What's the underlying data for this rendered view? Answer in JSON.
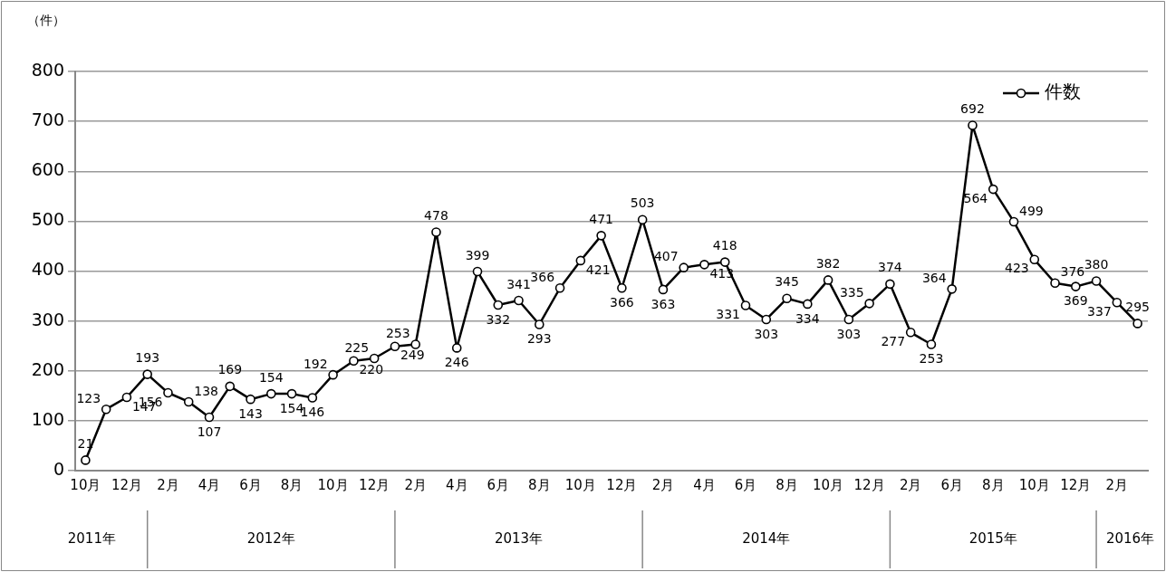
{
  "chart_data": {
    "type": "line",
    "ylabel": "（件）",
    "categories": [
      "10月",
      null,
      "12月",
      null,
      "2月",
      null,
      "4月",
      null,
      "6月",
      null,
      "8月",
      null,
      "10月",
      null,
      "12月",
      null,
      "2月",
      null,
      "4月",
      null,
      "6月",
      null,
      "8月",
      null,
      "10月",
      null,
      "12月",
      null,
      "2月",
      null,
      "4月",
      null,
      "6月",
      null,
      "8月",
      null,
      "10月",
      null,
      "12月",
      null,
      "2月",
      null,
      "6月",
      null,
      "8月",
      null,
      "10月",
      null,
      "12月",
      null,
      "2月",
      null
    ],
    "series": [
      {
        "name": "件数",
        "color": "#000000",
        "values": [
          21,
          123,
          147,
          193,
          156,
          138,
          107,
          169,
          143,
          154,
          154,
          146,
          192,
          220,
          225,
          249,
          253,
          478,
          246,
          399,
          332,
          341,
          293,
          366,
          421,
          471,
          366,
          503,
          363,
          407,
          413,
          418,
          331,
          303,
          345,
          334,
          382,
          303,
          335,
          374,
          277,
          253,
          364,
          692,
          564,
          499,
          423,
          376,
          369,
          380,
          337,
          295
        ]
      }
    ],
    "annotations": [
      "2011年",
      "2012年",
      "2013年",
      "2014年",
      "2015年",
      "2016年"
    ],
    "ylim": [
      0,
      800
    ],
    "yticks": [
      0,
      100,
      200,
      300,
      400,
      500,
      600,
      700,
      800
    ],
    "grid": "y",
    "legend": "top right",
    "marker": "circle",
    "line_style": "solid",
    "data_labels": true
  }
}
